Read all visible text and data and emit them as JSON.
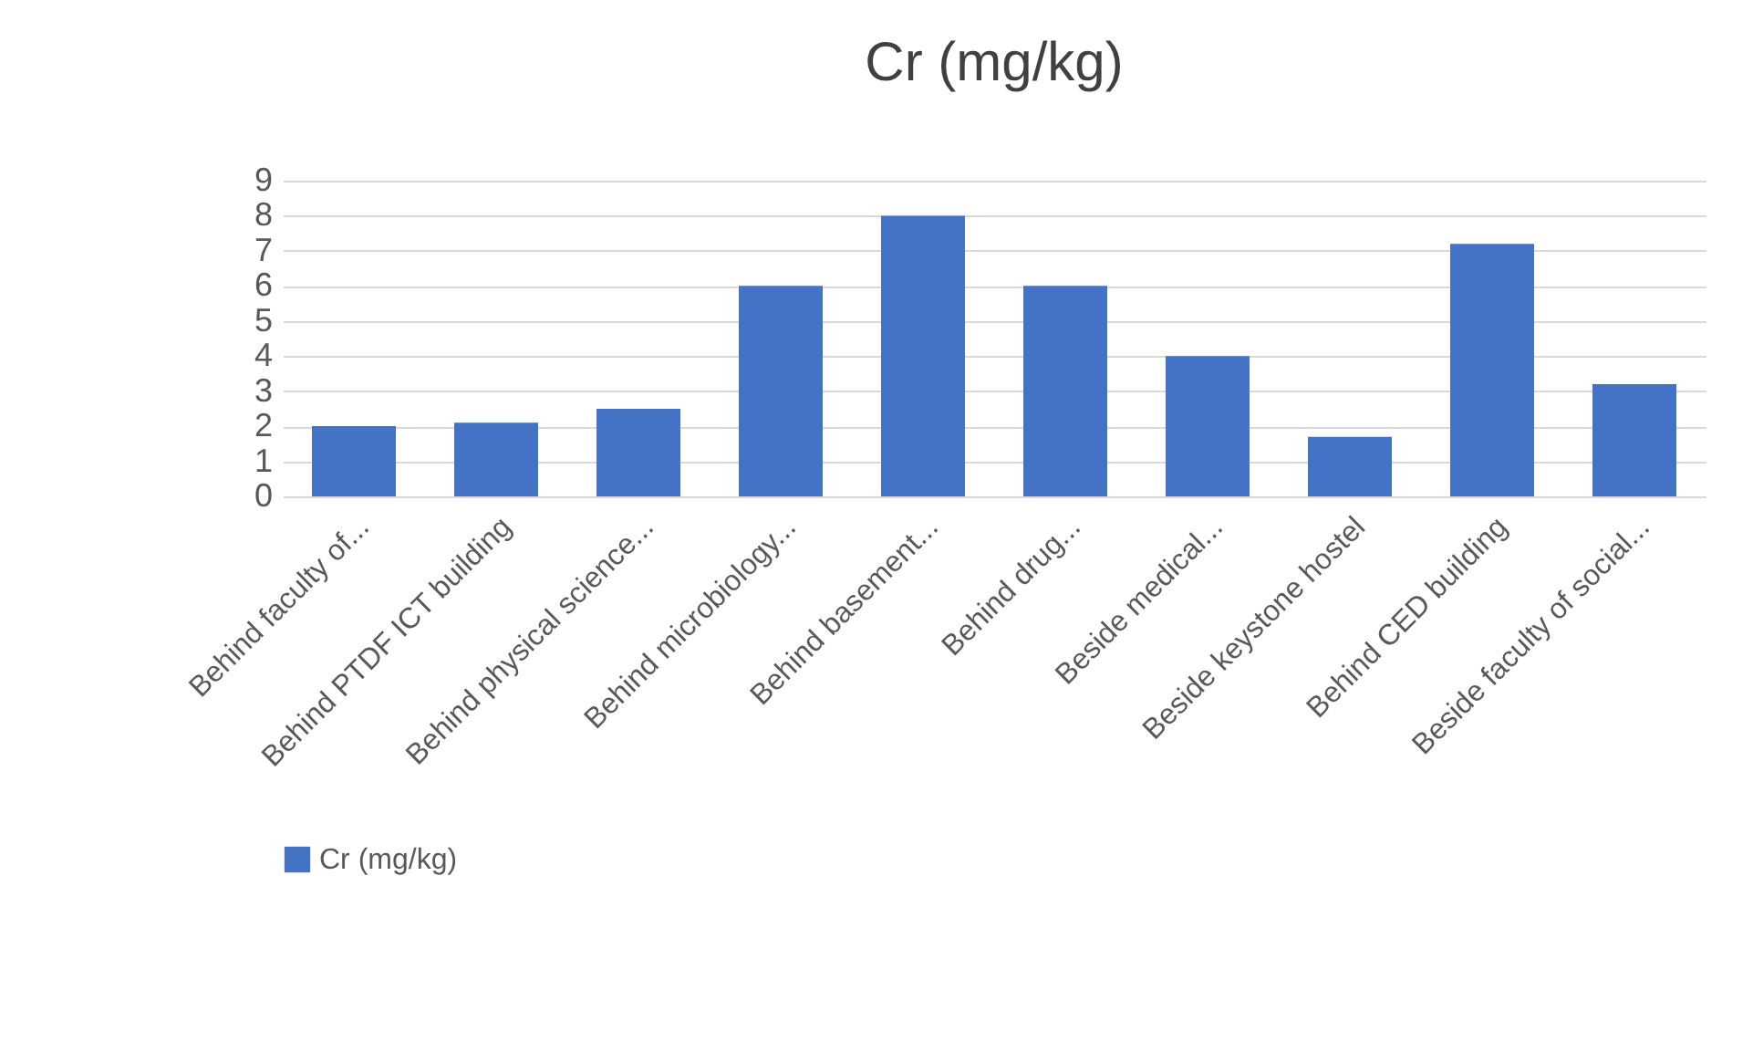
{
  "chart_data": {
    "type": "bar",
    "title": "Cr (mg/kg)",
    "categories": [
      "Behind faculty of...",
      "Behind PTDF ICT building",
      "Behind physical science...",
      "Behind microbiology...",
      "Behind basement...",
      "Behind drug...",
      "Beside medical...",
      "Beside keystone hostel",
      "Behind CED building",
      "Beside faculty of social..."
    ],
    "series": [
      {
        "name": "Cr (mg/kg)",
        "color": "#4472c4",
        "values": [
          2.0,
          2.1,
          2.5,
          6.0,
          8.0,
          6.0,
          4.0,
          1.7,
          7.2,
          3.2
        ]
      }
    ],
    "ylim": [
      0,
      9
    ],
    "yticks": [
      0,
      1,
      2,
      3,
      4,
      5,
      6,
      7,
      8,
      9
    ],
    "grid": "y",
    "legend": "bottom"
  }
}
